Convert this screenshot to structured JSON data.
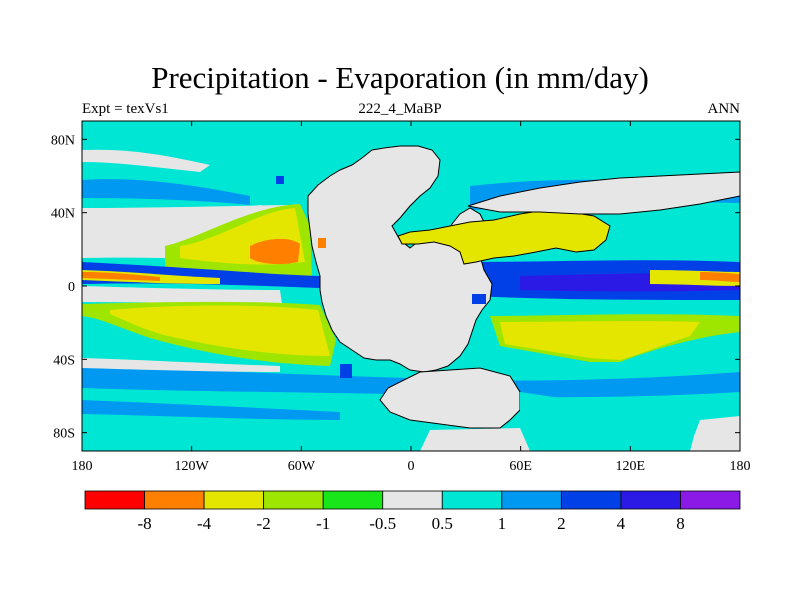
{
  "title": "Precipitation - Evaporation (in mm/day)",
  "left_string": "Expt = texVs1",
  "center_string": "222_4_MaBP",
  "right_string": "ANN",
  "lon_ticks": [
    "180",
    "120W",
    "60W",
    "0",
    "60E",
    "120E",
    "180"
  ],
  "lat_ticks": [
    "80N",
    "40N",
    "0",
    "40S",
    "80S"
  ],
  "colorbar": {
    "colors": [
      "#ff0000",
      "#ff7f00",
      "#e5e600",
      "#9ee600",
      "#19e619",
      "#e6e6e6",
      "#00e6d4",
      "#0099f2",
      "#0040e6",
      "#2b1ae6",
      "#8c1ae6"
    ],
    "labels": [
      "-8",
      "-4",
      "-2",
      "-1",
      "-0.5",
      "0.5",
      "1",
      "2",
      "4",
      "8"
    ]
  },
  "colors": {
    "land": "#e6e6e6",
    "coastline": "#000000"
  }
}
